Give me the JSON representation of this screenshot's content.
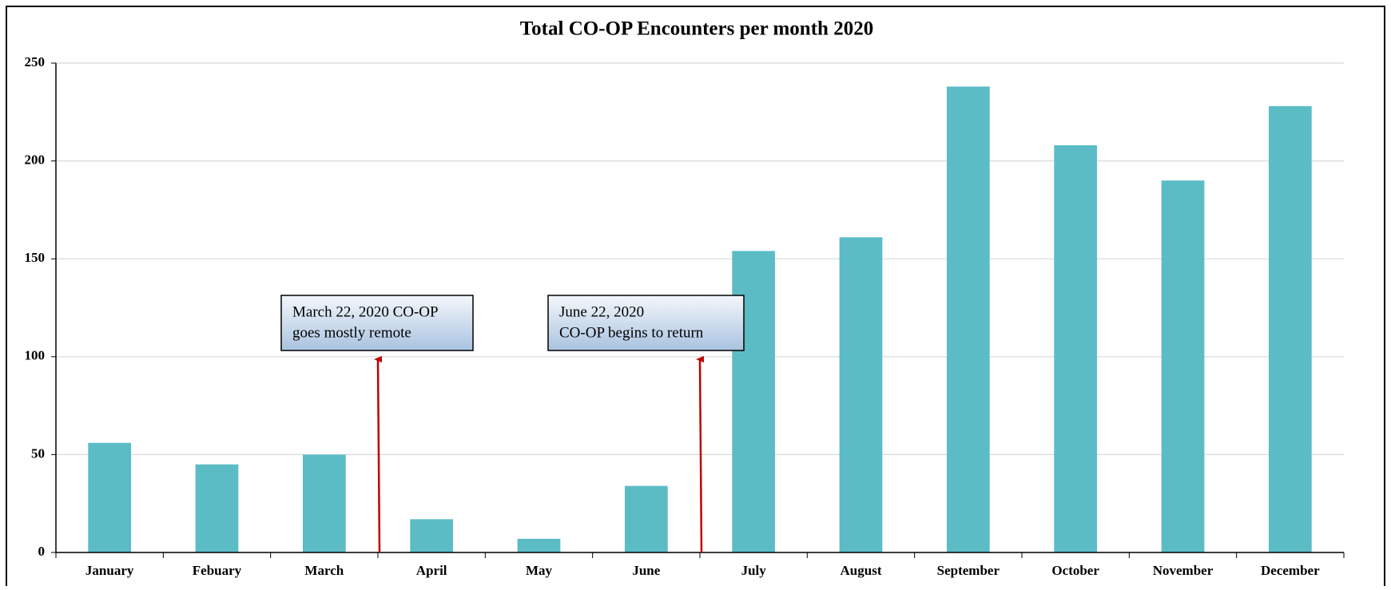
{
  "chart_data": {
    "type": "bar",
    "title": "Total CO-OP Encounters per month 2020",
    "categories": [
      "January",
      "Febuary",
      "March",
      "April",
      "May",
      "June",
      "July",
      "August",
      "September",
      "October",
      "November",
      "December"
    ],
    "values": [
      56,
      45,
      50,
      17,
      7,
      34,
      154,
      161,
      238,
      208,
      190,
      228
    ],
    "color": "#5bbcc6",
    "ylim": [
      0,
      250
    ],
    "yticks": [
      0,
      50,
      100,
      150,
      200,
      250
    ],
    "grid": true,
    "annotations": [
      {
        "lines": [
          "March 22, 2020 CO-OP",
          "goes mostly remote"
        ]
      },
      {
        "lines": [
          "June 22, 2020",
          "CO-OP begins to return"
        ]
      }
    ]
  }
}
